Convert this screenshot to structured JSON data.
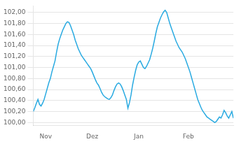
{
  "chart_data": {
    "type": "line",
    "x": [
      0,
      1,
      2,
      3,
      4,
      5,
      6,
      7,
      8,
      9,
      10,
      11,
      12,
      13,
      14,
      15,
      16,
      17,
      18,
      19,
      20,
      21,
      22,
      23,
      24,
      25,
      26,
      27,
      28,
      29,
      30,
      31,
      32,
      33,
      34,
      35,
      36,
      37,
      38,
      39,
      40,
      41,
      42,
      43,
      44,
      45,
      46,
      47,
      48,
      49,
      50,
      51,
      52,
      53,
      54,
      55,
      56,
      57,
      58,
      59,
      60,
      61,
      62,
      63,
      64,
      65,
      66,
      67,
      68,
      69,
      70,
      71,
      72,
      73,
      74,
      75,
      76,
      77,
      78,
      79,
      80,
      81,
      82,
      83,
      84,
      85,
      86,
      87,
      88,
      89,
      90,
      91,
      92,
      93,
      94,
      95,
      96,
      97,
      98,
      99,
      100,
      101,
      102,
      103,
      104,
      105,
      106,
      107,
      108,
      109,
      110,
      111,
      112,
      113,
      114,
      115,
      116,
      117,
      118,
      119,
      120,
      121,
      122,
      123,
      124,
      125,
      126,
      127,
      128,
      129
    ],
    "values": [
      100.2,
      100.27,
      100.35,
      100.42,
      100.33,
      100.3,
      100.35,
      100.42,
      100.52,
      100.62,
      100.72,
      100.8,
      100.92,
      101.02,
      101.12,
      101.28,
      101.42,
      101.52,
      101.6,
      101.68,
      101.74,
      101.8,
      101.83,
      101.82,
      101.76,
      101.68,
      101.6,
      101.5,
      101.42,
      101.34,
      101.28,
      101.22,
      101.18,
      101.14,
      101.1,
      101.06,
      101.02,
      100.98,
      100.92,
      100.85,
      100.78,
      100.72,
      100.68,
      100.62,
      100.55,
      100.5,
      100.47,
      100.45,
      100.43,
      100.42,
      100.45,
      100.5,
      100.58,
      100.65,
      100.7,
      100.72,
      100.7,
      100.65,
      100.58,
      100.5,
      100.42,
      100.26,
      100.36,
      100.5,
      100.68,
      100.82,
      100.95,
      101.05,
      101.1,
      101.12,
      101.06,
      101.0,
      100.98,
      101.02,
      101.08,
      101.14,
      101.24,
      101.35,
      101.48,
      101.62,
      101.74,
      101.82,
      101.9,
      101.96,
      102.01,
      102.04,
      102.0,
      101.9,
      101.8,
      101.72,
      101.64,
      101.56,
      101.48,
      101.42,
      101.36,
      101.32,
      101.28,
      101.22,
      101.16,
      101.08,
      101.0,
      100.92,
      100.82,
      100.72,
      100.62,
      100.52,
      100.42,
      100.35,
      100.28,
      100.22,
      100.18,
      100.14,
      100.1,
      100.08,
      100.06,
      100.04,
      100.02,
      100.0,
      100.02,
      100.06,
      100.1,
      100.08,
      100.14,
      100.22,
      100.18,
      100.12,
      100.08,
      100.14,
      100.2,
      100.08
    ],
    "color": "#29aae1",
    "xlim": [
      0,
      129
    ],
    "xticks": [
      {
        "value": 8,
        "label": "Nov"
      },
      {
        "value": 38,
        "label": "Dez"
      },
      {
        "value": 68,
        "label": "Jan"
      },
      {
        "value": 100,
        "label": "Feb"
      }
    ],
    "ylim": [
      99.95,
      102.12
    ],
    "yticks": [
      {
        "value": 100.0,
        "label": "100,00"
      },
      {
        "value": 100.2,
        "label": "100,20"
      },
      {
        "value": 100.4,
        "label": "100,40"
      },
      {
        "value": 100.6,
        "label": "100,60"
      },
      {
        "value": 100.8,
        "label": "100,80"
      },
      {
        "value": 101.0,
        "label": "101,00"
      },
      {
        "value": 101.2,
        "label": "101,20"
      },
      {
        "value": 101.4,
        "label": "101,40"
      },
      {
        "value": 101.6,
        "label": "101,60"
      },
      {
        "value": 101.8,
        "label": "101,80"
      },
      {
        "value": 102.0,
        "label": "102,00"
      }
    ],
    "grid": "y"
  }
}
